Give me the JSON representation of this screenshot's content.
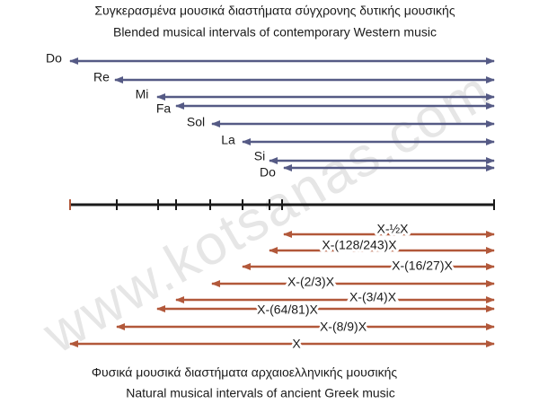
{
  "header": {
    "greek": "Συγκερασμένα μουσικά διαστήματα σύγχρονης δυτικής μουσικής",
    "english": "Blended musical intervals of contemporary Western music"
  },
  "tempered_notes": [
    "Do",
    "Re",
    "Mi",
    "Fa",
    "Sol",
    "La",
    "Si",
    "Do"
  ],
  "natural_intervals": [
    "X-½X",
    "X-(128/243)X",
    "X-(16/27)X",
    "X-(2/3)X",
    "X-(3/4)X",
    "X-(64/81)X",
    "X-(8/9)X",
    "X"
  ],
  "footer": {
    "greek": "Φυσικά μουσικά διαστήματα αρχαιοελληνικής μουσικής",
    "english": "Natural musical intervals of ancient Greek music"
  },
  "watermark": "www.kotsanas.com"
}
